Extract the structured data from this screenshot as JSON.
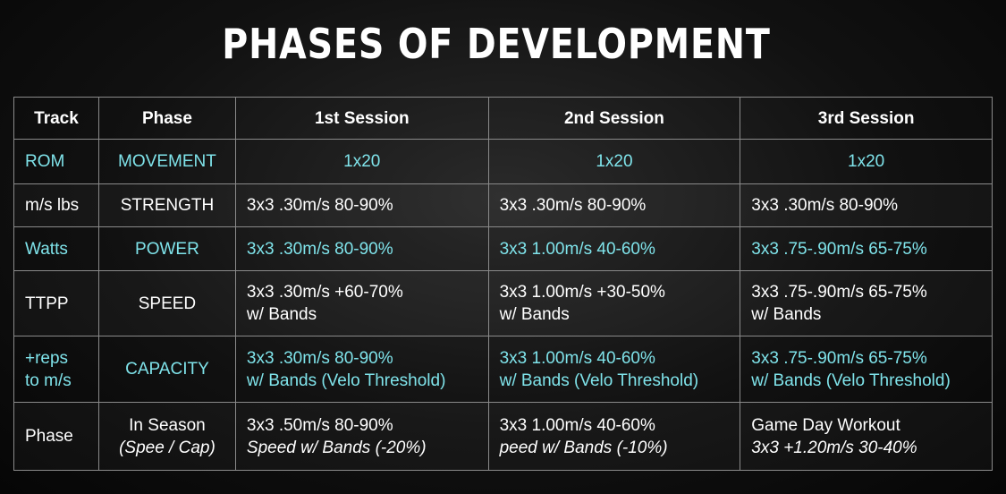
{
  "title": "PHASES OF DEVELOPMENT",
  "table": {
    "header": [
      "Track",
      "Phase",
      "1st Session",
      "2nd Session",
      "3rd Session"
    ],
    "rows": [
      [
        [
          "ROM"
        ],
        [
          "MOVEMENT"
        ],
        [
          "1x20"
        ],
        [
          "1x20"
        ],
        [
          "1x20"
        ]
      ],
      [
        [
          "m/s lbs"
        ],
        [
          "STRENGTH"
        ],
        [
          "3x3 .30m/s 80-90%"
        ],
        [
          "3x3 .30m/s 80-90%"
        ],
        [
          "3x3 .30m/s 80-90%"
        ]
      ],
      [
        [
          "Watts"
        ],
        [
          "POWER"
        ],
        [
          "3x3 .30m/s 80-90%"
        ],
        [
          "3x3 1.00m/s 40-60%"
        ],
        [
          "3x3 .75-.90m/s 65-75%"
        ]
      ],
      [
        [
          "TTPP"
        ],
        [
          "SPEED"
        ],
        [
          "3x3 .30m/s +60-70%",
          "w/ Bands"
        ],
        [
          "3x3 1.00m/s +30-50%",
          "w/ Bands"
        ],
        [
          "3x3 .75-.90m/s 65-75%",
          "w/ Bands"
        ]
      ],
      [
        [
          "+reps",
          "to m/s"
        ],
        [
          "CAPACITY"
        ],
        [
          "3x3 .30m/s 80-90%",
          "w/ Bands (Velo Threshold)"
        ],
        [
          "3x3 1.00m/s 40-60%",
          "w/ Bands (Velo Threshold)"
        ],
        [
          "3x3 .75-.90m/s 65-75%",
          "w/ Bands (Velo Threshold)"
        ]
      ],
      [
        [
          "Phase"
        ],
        [
          "In Season",
          "(Spee / Cap)"
        ],
        [
          "3x3 .50m/s 80-90%",
          "Speed w/ Bands (-20%)"
        ],
        [
          "3x3 1.00m/s 40-60%",
          "peed w/ Bands (-10%)"
        ],
        [
          "Game Day Workout",
          "3x3 +1.20m/s 30-40%"
        ]
      ]
    ]
  }
}
